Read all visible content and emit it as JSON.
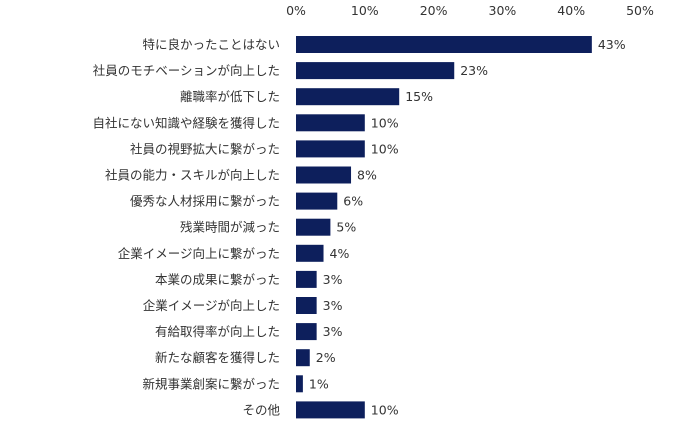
{
  "chart_data": {
    "type": "bar",
    "orientation": "horizontal",
    "title": "",
    "xlabel": "",
    "ylabel": "",
    "xlim": [
      0,
      50
    ],
    "ticks": [
      0,
      10,
      20,
      30,
      40,
      50
    ],
    "tick_labels": [
      "0%",
      "10%",
      "20%",
      "30%",
      "40%",
      "50%"
    ],
    "axis_position": "top",
    "grid": false,
    "bar_color": "#0d1f5c",
    "categories": [
      "特に良かったことはない",
      "社員のモチベーションが向上した",
      "離職率が低下した",
      "自社にない知識や経験を獲得した",
      "社員の視野拡大に繋がった",
      "社員の能力・スキルが向上した",
      "優秀な人材採用に繋がった",
      "残業時間が減った",
      "企業イメージ向上に繋がった",
      "本業の成果に繋がった",
      "企業イメージが向上した",
      "有給取得率が向上した",
      "新たな顧客を獲得した",
      "新規事業創案に繋がった",
      "その他"
    ],
    "values": [
      43,
      23,
      15,
      10,
      10,
      8,
      6,
      5,
      4,
      3,
      3,
      3,
      2,
      1,
      10
    ],
    "value_labels": [
      "43%",
      "23%",
      "15%",
      "10%",
      "10%",
      "8%",
      "6%",
      "5%",
      "4%",
      "3%",
      "3%",
      "3%",
      "2%",
      "1%",
      "10%"
    ]
  }
}
